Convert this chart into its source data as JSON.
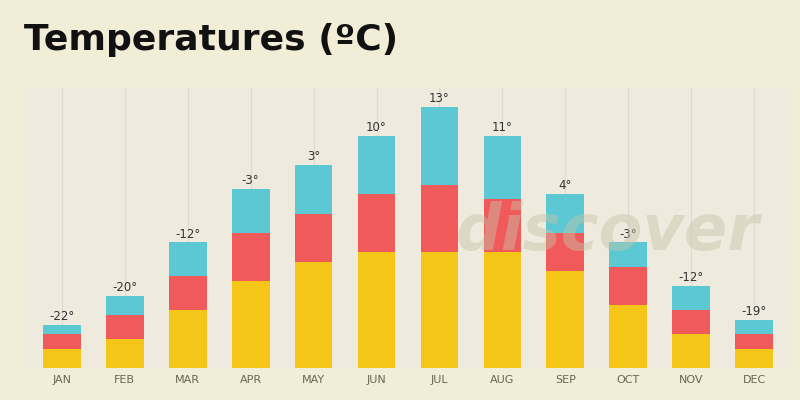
{
  "months": [
    "JAN",
    "FEB",
    "MAR",
    "APR",
    "MAY",
    "JUN",
    "JUL",
    "AUG",
    "SEP",
    "OCT",
    "NOV",
    "DEC"
  ],
  "labels": [
    "-22°",
    "-20°",
    "-12°",
    "-3°",
    "3°",
    "10°",
    "13°",
    "11°",
    "4°",
    "-3°",
    "-12°",
    "-19°"
  ],
  "yellow_heights": [
    4,
    6,
    12,
    18,
    22,
    24,
    24,
    24,
    20,
    13,
    7,
    4
  ],
  "red_heights": [
    3,
    5,
    7,
    10,
    10,
    12,
    14,
    11,
    8,
    8,
    5,
    3
  ],
  "cyan_heights": [
    2,
    4,
    7,
    9,
    10,
    12,
    16,
    13,
    8,
    5,
    5,
    3
  ],
  "color_yellow": "#F5C518",
  "color_red": "#F05A5A",
  "color_cyan": "#5BC8D4",
  "background_color": "#F2EDD7",
  "plot_bg_color": "#EEEADE",
  "grid_color": "#DEDAD0",
  "title": "Temperatures (ºC)",
  "title_fontsize": 26,
  "title_fontweight": "bold",
  "figsize": [
    8.0,
    4.0
  ],
  "dpi": 100,
  "bar_width": 0.6,
  "label_fontsize": 8.5,
  "tick_fontsize": 8,
  "tick_color": "#666655"
}
